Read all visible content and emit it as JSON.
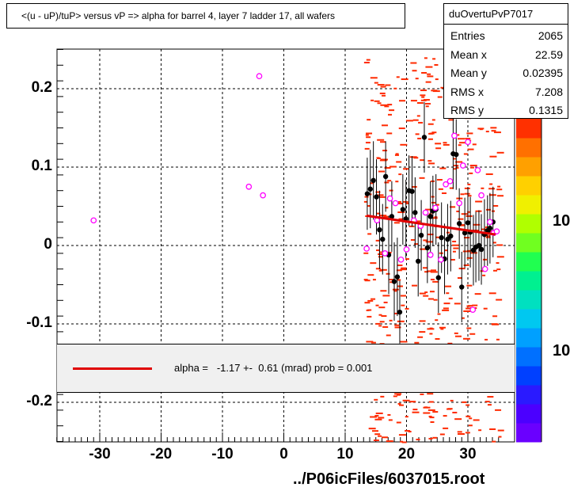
{
  "title": "<(u - uP)/tuP> versus   vP => alpha for barrel 4, layer 7 ladder 17, all wafers",
  "stats": {
    "name": "duOvertuPvP7017",
    "rows": [
      {
        "label": "Entries",
        "value": "2065"
      },
      {
        "label": "Mean x",
        "value": "22.59"
      },
      {
        "label": "Mean y",
        "value": "0.02395"
      },
      {
        "label": "RMS x",
        "value": "7.208"
      },
      {
        "label": "RMS y",
        "value": "0.1315"
      }
    ]
  },
  "fit_text": "alpha =   -1.17 +-  0.61 (mrad) prob = 0.001",
  "footer": "../P06icFiles/6037015.root",
  "z_labels": [
    "10",
    "10"
  ],
  "colors": {
    "fit": "#e00000",
    "hist": "#ff2a00",
    "profile": "#000000",
    "open": "#ff00ff"
  },
  "chart_data": {
    "type": "scatter",
    "xlim": [
      -37,
      35.5
    ],
    "ylim": [
      -0.25,
      0.25
    ],
    "x_ticks": [
      -30,
      -20,
      -10,
      0,
      10,
      20,
      30
    ],
    "x_tick_labels": [
      "-30",
      "-20",
      "-10",
      "0",
      "10",
      "20",
      "30"
    ],
    "y_ticks": [
      -0.2,
      -0.1,
      0,
      0.1,
      0.2
    ],
    "y_tick_labels": [
      "-0.2",
      "-0.1",
      "0",
      "0.1",
      "0.2"
    ],
    "grid": true,
    "fit_line": {
      "x": [
        13.5,
        34.5
      ],
      "y": [
        0.038,
        0.014
      ]
    },
    "open_points": [
      {
        "x": -31,
        "y": 0.032
      },
      {
        "x": -5.7,
        "y": 0.075
      },
      {
        "x": -4,
        "y": 0.216
      },
      {
        "x": -3.4,
        "y": 0.064
      },
      {
        "x": 13.5,
        "y": -0.004
      },
      {
        "x": 15.2,
        "y": 0.032
      },
      {
        "x": 16.5,
        "y": -0.01
      },
      {
        "x": 17.3,
        "y": 0.06
      },
      {
        "x": 18.2,
        "y": 0.054
      },
      {
        "x": 19.1,
        "y": -0.018
      },
      {
        "x": 20.0,
        "y": -0.005
      },
      {
        "x": 21.2,
        "y": 0.032
      },
      {
        "x": 22.3,
        "y": 0.025
      },
      {
        "x": 23.1,
        "y": 0.042
      },
      {
        "x": 23.9,
        "y": -0.012
      },
      {
        "x": 24.7,
        "y": 0.048
      },
      {
        "x": 25.6,
        "y": -0.018
      },
      {
        "x": 26.4,
        "y": 0.078
      },
      {
        "x": 27.1,
        "y": 0.082
      },
      {
        "x": 27.8,
        "y": 0.14
      },
      {
        "x": 28.6,
        "y": 0.054
      },
      {
        "x": 29.2,
        "y": 0.102
      },
      {
        "x": 30.0,
        "y": 0.132
      },
      {
        "x": 30.8,
        "y": -0.082
      },
      {
        "x": 31.6,
        "y": 0.096
      },
      {
        "x": 32.2,
        "y": 0.064
      },
      {
        "x": 32.8,
        "y": -0.03
      },
      {
        "x": 33.6,
        "y": 0.03
      },
      {
        "x": 34.2,
        "y": 0.016
      },
      {
        "x": 34.7,
        "y": 0.018
      }
    ],
    "profile_points": [
      {
        "x": 13.6,
        "y": 0.066,
        "err": 0.046
      },
      {
        "x": 14.1,
        "y": 0.072,
        "err": 0.05
      },
      {
        "x": 14.6,
        "y": 0.083,
        "err": 0.05
      },
      {
        "x": 15.1,
        "y": 0.062,
        "err": 0.048
      },
      {
        "x": 15.6,
        "y": 0.02,
        "err": 0.05
      },
      {
        "x": 16.1,
        "y": 0.008,
        "err": 0.045
      },
      {
        "x": 16.6,
        "y": 0.088,
        "err": 0.045
      },
      {
        "x": 17.1,
        "y": -0.012,
        "err": 0.05
      },
      {
        "x": 17.6,
        "y": 0.037,
        "err": 0.045
      },
      {
        "x": 18.0,
        "y": -0.046,
        "err": 0.05
      },
      {
        "x": 18.5,
        "y": -0.04,
        "err": 0.05
      },
      {
        "x": 18.9,
        "y": -0.085,
        "err": 0.04
      },
      {
        "x": 19.4,
        "y": 0.046,
        "err": 0.045
      },
      {
        "x": 19.9,
        "y": 0.034,
        "err": 0.05
      },
      {
        "x": 20.4,
        "y": 0.07,
        "err": 0.045
      },
      {
        "x": 20.9,
        "y": 0.069,
        "err": 0.045
      },
      {
        "x": 21.4,
        "y": 0.042,
        "err": 0.045
      },
      {
        "x": 21.9,
        "y": -0.02,
        "err": 0.045
      },
      {
        "x": 22.4,
        "y": 0.013,
        "err": 0.045
      },
      {
        "x": 22.9,
        "y": 0.138,
        "err": 0.045
      },
      {
        "x": 23.4,
        "y": -0.003,
        "err": 0.045
      },
      {
        "x": 23.9,
        "y": 0.037,
        "err": 0.045
      },
      {
        "x": 24.3,
        "y": 0.044,
        "err": 0.045
      },
      {
        "x": 24.8,
        "y": 0.046,
        "err": 0.045
      },
      {
        "x": 25.2,
        "y": -0.041,
        "err": 0.045
      },
      {
        "x": 25.7,
        "y": 0.01,
        "err": 0.045
      },
      {
        "x": 26.2,
        "y": -0.017,
        "err": 0.045
      },
      {
        "x": 26.7,
        "y": 0.008,
        "err": 0.045
      },
      {
        "x": 27.2,
        "y": 0.012,
        "err": 0.045
      },
      {
        "x": 27.6,
        "y": 0.117,
        "err": 0.045
      },
      {
        "x": 28.1,
        "y": 0.116,
        "err": 0.045
      },
      {
        "x": 28.6,
        "y": 0.028,
        "err": 0.045
      },
      {
        "x": 29.0,
        "y": -0.053,
        "err": 0.045
      },
      {
        "x": 29.5,
        "y": 0.016,
        "err": 0.045
      },
      {
        "x": 30.0,
        "y": 0.029,
        "err": 0.045
      },
      {
        "x": 30.4,
        "y": 0.017,
        "err": 0.045
      },
      {
        "x": 30.9,
        "y": -0.006,
        "err": 0.045
      },
      {
        "x": 31.3,
        "y": -0.002,
        "err": 0.045
      },
      {
        "x": 31.8,
        "y": 0.0,
        "err": 0.045
      },
      {
        "x": 32.2,
        "y": -0.005,
        "err": 0.045
      },
      {
        "x": 32.7,
        "y": 0.014,
        "err": 0.045
      },
      {
        "x": 33.2,
        "y": 0.019,
        "err": 0.045
      },
      {
        "x": 33.6,
        "y": 0.022,
        "err": 0.045
      },
      {
        "x": 34.1,
        "y": 0.03,
        "err": 0.045
      }
    ],
    "hist_x_range": [
      13,
      35
    ],
    "hist_y_range": [
      -0.25,
      0.245
    ],
    "palette": [
      "#6a00ff",
      "#4b00ff",
      "#2a1aff",
      "#0040ff",
      "#0070ff",
      "#00a0ff",
      "#00c8f0",
      "#00e0c0",
      "#00f090",
      "#20ff50",
      "#70ff20",
      "#b0ff00",
      "#f0f000",
      "#ffd000",
      "#ffa000",
      "#ff7000",
      "#ff3000"
    ]
  }
}
